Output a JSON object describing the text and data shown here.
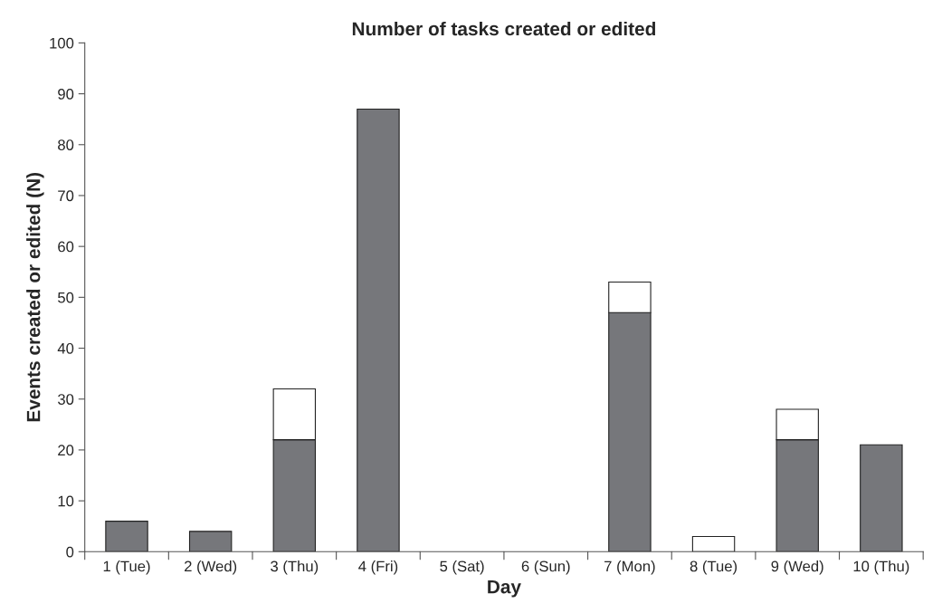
{
  "chart_data": {
    "type": "bar",
    "title": "Number of tasks created or edited",
    "xlabel": "Day",
    "ylabel": "Events created or edited (N)",
    "categories": [
      "1 (Tue)",
      "2 (Wed)",
      "3 (Thu)",
      "4 (Fri)",
      "5 (Sat)",
      "6 (Sun)",
      "7 (Mon)",
      "8 (Tue)",
      "9 (Wed)",
      "10 (Thu)"
    ],
    "series": [
      {
        "color": "#76777b",
        "values": [
          6,
          4,
          22,
          87,
          null,
          null,
          47,
          null,
          22,
          21
        ]
      },
      {
        "color": "#ffffff",
        "values": [
          null,
          null,
          10,
          null,
          null,
          null,
          6,
          3,
          6,
          null
        ]
      }
    ],
    "stacked": true,
    "ylim": [
      0,
      100
    ],
    "yticks": [
      0,
      10,
      20,
      30,
      40,
      50,
      60,
      70,
      80,
      90,
      100
    ],
    "grid": false,
    "legend": false
  }
}
